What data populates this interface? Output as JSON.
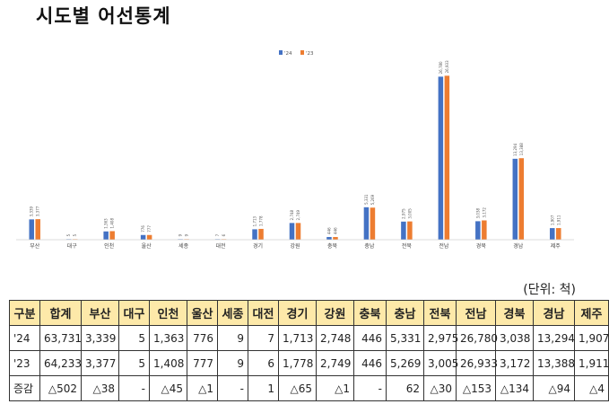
{
  "page": {
    "title": "시도별 어선통계",
    "unit": "(단위: 척)"
  },
  "chart_data": {
    "type": "bar",
    "categories": [
      "부산",
      "대구",
      "인천",
      "울산",
      "세종",
      "대전",
      "경기",
      "강원",
      "충북",
      "충남",
      "전북",
      "전남",
      "경북",
      "경남",
      "제주"
    ],
    "series": [
      {
        "name": "'24",
        "values": [
          3339,
          5,
          1363,
          776,
          9,
          7,
          1713,
          2748,
          446,
          5331,
          2975,
          26780,
          3038,
          13294,
          1907
        ],
        "color": "#4472c4"
      },
      {
        "name": "'23",
        "values": [
          3377,
          5,
          1408,
          777,
          9,
          6,
          1778,
          2749,
          446,
          5269,
          3005,
          26933,
          3172,
          13388,
          1911
        ],
        "color": "#ed7d31"
      }
    ],
    "data_labels": [
      [
        "3,339",
        "5",
        "1,363",
        "776",
        "9",
        "7",
        "1,713",
        "2,748",
        "446",
        "5,331",
        "2,975",
        "26,780",
        "3,038",
        "13,294",
        "1,907"
      ],
      [
        "3,377",
        "5",
        "1,408",
        "777",
        "9",
        "6",
        "1,778",
        "2,749",
        "446",
        "5,269",
        "3,005",
        "26,933",
        "3,172",
        "13,388",
        "1,911"
      ]
    ],
    "ylim": [
      0,
      32000
    ],
    "legend": "top-center",
    "grid": false
  },
  "table": {
    "headers": [
      "구분",
      "합계",
      "부산",
      "대구",
      "인천",
      "울산",
      "세종",
      "대전",
      "경기",
      "강원",
      "충북",
      "충남",
      "전북",
      "전남",
      "경북",
      "경남",
      "제주"
    ],
    "rows": [
      [
        "'24",
        "63,731",
        "3,339",
        "5",
        "1,363",
        "776",
        "9",
        "7",
        "1,713",
        "2,748",
        "446",
        "5,331",
        "2,975",
        "26,780",
        "3,038",
        "13,294",
        "1,907"
      ],
      [
        "'23",
        "64,233",
        "3,377",
        "5",
        "1,408",
        "777",
        "9",
        "6",
        "1,778",
        "2,749",
        "446",
        "5,269",
        "3,005",
        "26,933",
        "3,172",
        "13,388",
        "1,911"
      ],
      [
        "증감",
        "△502",
        "△38",
        "-",
        "△45",
        "△1",
        "-",
        "1",
        "△65",
        "△1",
        "-",
        "62",
        "△30",
        "△153",
        "△134",
        "△94",
        "△4"
      ]
    ]
  }
}
